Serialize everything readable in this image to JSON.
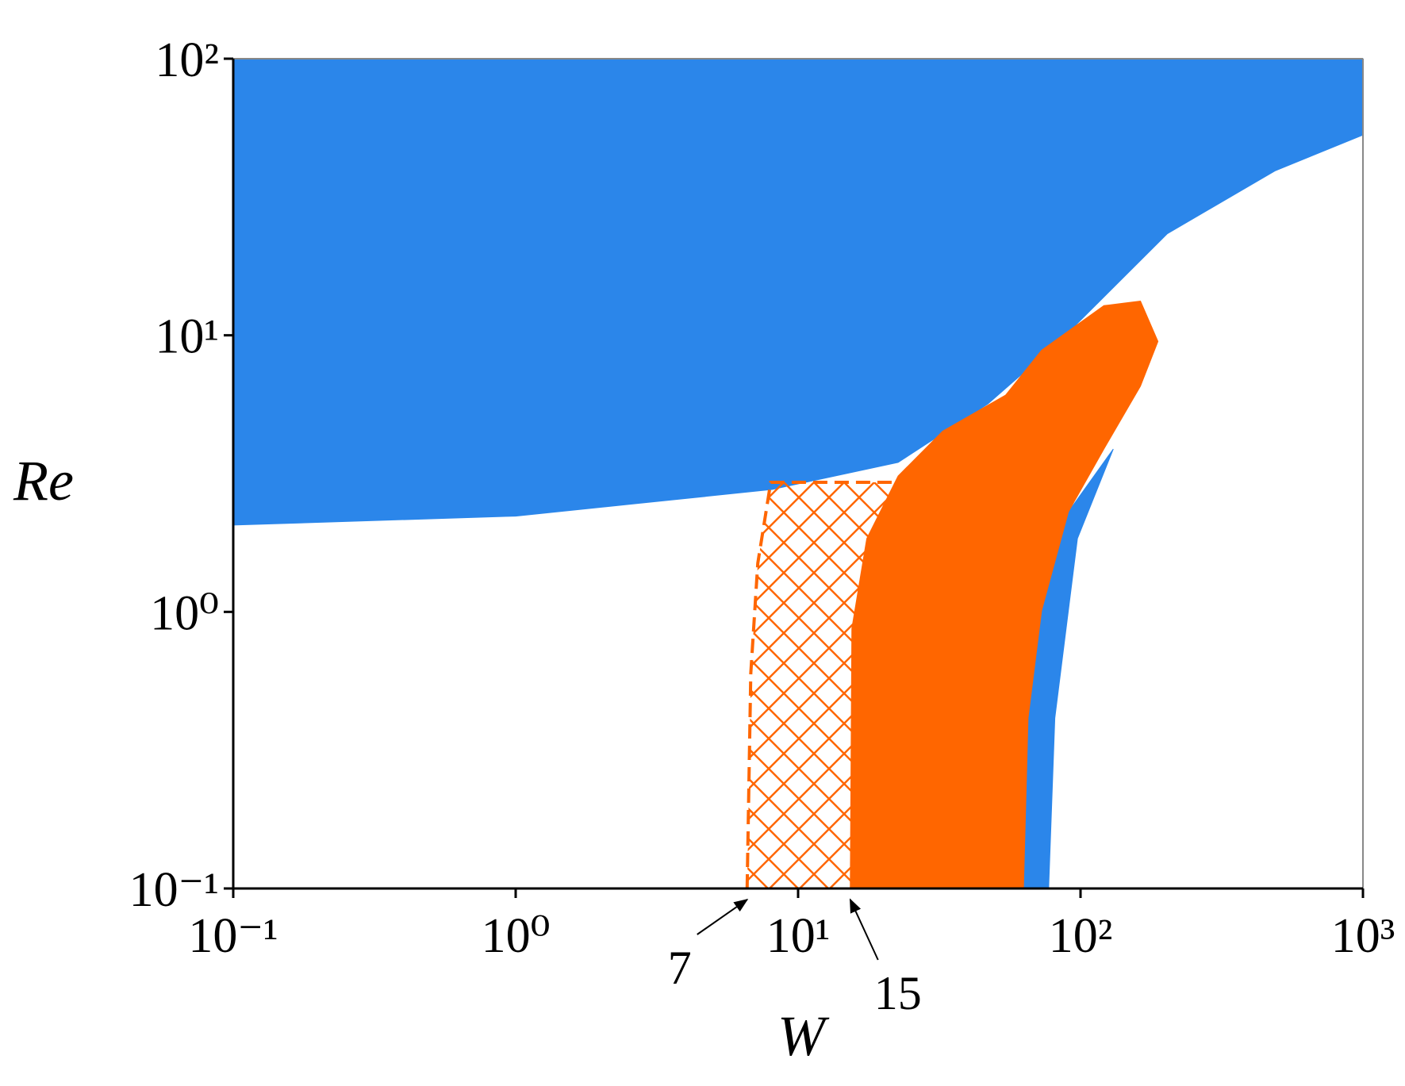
{
  "chart_data": {
    "type": "region",
    "xlabel": "W",
    "ylabel": "Re",
    "xscale": "log",
    "yscale": "log",
    "xlim": [
      0.1,
      1000
    ],
    "ylim": [
      0.1,
      100
    ],
    "xticks": [
      {
        "value": 0.1,
        "label": "10⁻¹"
      },
      {
        "value": 1,
        "label": "10⁰"
      },
      {
        "value": 10,
        "label": "10¹"
      },
      {
        "value": 100,
        "label": "10²"
      },
      {
        "value": 1000,
        "label": "10³"
      }
    ],
    "yticks": [
      {
        "value": 0.1,
        "label": "10⁻¹"
      },
      {
        "value": 1,
        "label": "10⁰"
      },
      {
        "value": 10,
        "label": "10¹"
      },
      {
        "value": 100,
        "label": "10²"
      }
    ],
    "regions": [
      {
        "color": "#2b86ea",
        "x": [
          0.1,
          1,
          8.09,
          22.6,
          46.9,
          84.1,
          203,
          488,
          1000,
          1000,
          0.1
        ],
        "y": [
          2.06,
          2.22,
          2.77,
          3.47,
          5.64,
          9.5,
          23.3,
          39.3,
          53,
          100,
          100
        ]
      },
      {
        "color": "#2b86ea",
        "x": [
          62.8,
          77.1,
          81.1,
          97.5,
          130.6,
          90.6,
          72.8,
          65.2
        ],
        "y": [
          0.1,
          0.1,
          0.413,
          1.84,
          3.88,
          2.3,
          1.01,
          0.413
        ]
      },
      {
        "color": "#ff6600",
        "x": [
          15.3,
          15.5,
          17.5,
          22.6,
          32.5,
          54.3,
          72.8,
          121,
          163,
          188,
          163,
          121,
          90.6,
          72.8,
          65.2,
          62.8
        ],
        "y": [
          0.1,
          0.871,
          1.84,
          3.1,
          4.5,
          6.08,
          8.83,
          12.8,
          13.3,
          9.5,
          6.55,
          3.88,
          2.3,
          1.01,
          0.413,
          0.1
        ]
      },
      {
        "color": "#ff6600",
        "hatch": true,
        "x": [
          6.6,
          6.8,
          7.2,
          8,
          22.6,
          17.5,
          15.5,
          15.3
        ],
        "y": [
          0.1,
          0.6,
          1.5,
          2.94,
          2.94,
          1.84,
          0.871,
          0.1
        ]
      }
    ],
    "boundary": {
      "color": "#ff6600",
      "dashed": true,
      "x": [
        6.6,
        6.8,
        7.2,
        8,
        22.6
      ],
      "y": [
        0.1,
        0.6,
        1.5,
        2.94,
        2.94
      ]
    },
    "annotations": [
      {
        "label": "7",
        "x": 6.6
      },
      {
        "label": "15",
        "x": 15.3
      }
    ]
  }
}
